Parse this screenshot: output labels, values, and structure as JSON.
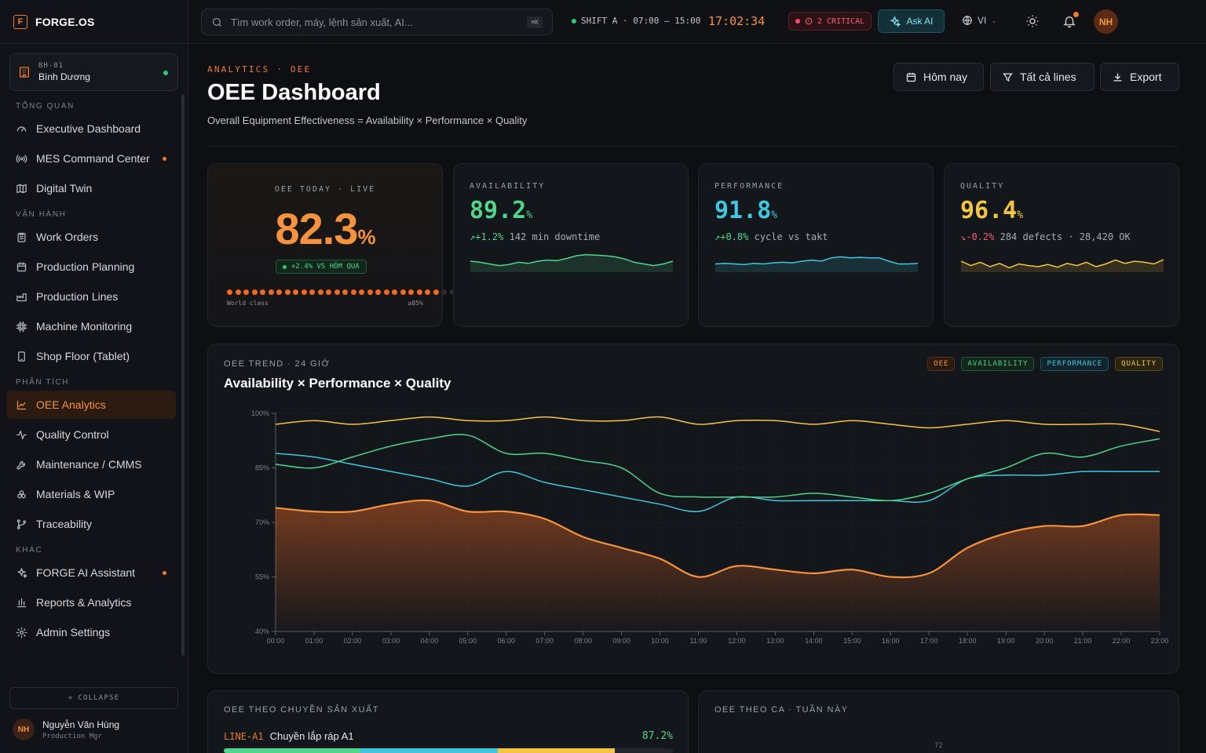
{
  "brand": {
    "logo_letter": "F",
    "name": "FORGE.OS"
  },
  "site": {
    "code": "BH-01",
    "name": "Bình Dương"
  },
  "nav": {
    "sections": [
      {
        "title": "TỔNG QUAN",
        "items": [
          {
            "label": "Executive Dashboard",
            "icon": "gauge-icon",
            "dot": false,
            "active": false
          },
          {
            "label": "MES Command Center",
            "icon": "broadcast-icon",
            "dot": true,
            "active": false
          },
          {
            "label": "Digital Twin",
            "icon": "map-icon",
            "dot": false,
            "active": false
          }
        ]
      },
      {
        "title": "VẬN HÀNH",
        "items": [
          {
            "label": "Work Orders",
            "icon": "clipboard-icon",
            "dot": false,
            "active": false
          },
          {
            "label": "Production Planning",
            "icon": "calendar-icon",
            "dot": false,
            "active": false
          },
          {
            "label": "Production Lines",
            "icon": "factory-icon",
            "dot": false,
            "active": false
          },
          {
            "label": "Machine Monitoring",
            "icon": "cpu-icon",
            "dot": false,
            "active": false
          },
          {
            "label": "Shop Floor (Tablet)",
            "icon": "tablet-icon",
            "dot": false,
            "active": false
          }
        ]
      },
      {
        "title": "PHÂN TÍCH",
        "items": [
          {
            "label": "OEE Analytics",
            "icon": "line-chart-icon",
            "dot": false,
            "active": true
          },
          {
            "label": "Quality Control",
            "icon": "activity-icon",
            "dot": false,
            "active": false
          },
          {
            "label": "Maintenance / CMMS",
            "icon": "wrench-icon",
            "dot": false,
            "active": false
          },
          {
            "label": "Materials & WIP",
            "icon": "boxes-icon",
            "dot": false,
            "active": false
          },
          {
            "label": "Traceability",
            "icon": "git-branch-icon",
            "dot": false,
            "active": false
          }
        ]
      },
      {
        "title": "KHÁC",
        "items": [
          {
            "label": "FORGE AI Assistant",
            "icon": "sparkles-icon",
            "dot": true,
            "active": false
          },
          {
            "label": "Reports & Analytics",
            "icon": "bar-chart-icon",
            "dot": false,
            "active": false
          },
          {
            "label": "Admin Settings",
            "icon": "settings-icon",
            "dot": false,
            "active": false
          }
        ]
      }
    ],
    "collapse_label": "COLLAPSE"
  },
  "user": {
    "initials": "NH",
    "name": "Nguyễn Văn Hùng",
    "role": "Production Mgr"
  },
  "topbar": {
    "search_placeholder": "Tìm work order, máy, lệnh sản xuất, AI...",
    "search_shortcut": "⌘K",
    "shift": "SHIFT A · 07:00 – 15:00",
    "clock": "17:02:34",
    "critical": "2 CRITICAL",
    "ask_ai": "Ask AI",
    "language": "VI",
    "avatar": "NH"
  },
  "header": {
    "eyebrow": "ANALYTICS · OEE",
    "title": "OEE Dashboard",
    "subtitle": "Overall Equipment Effectiveness = Availability × Performance × Quality",
    "buttons": {
      "today": "Hôm nay",
      "lines": "Tất cả lines",
      "export": "Export"
    }
  },
  "oee_today": {
    "label": "OEE TODAY · LIVE",
    "value": "82.3",
    "unit": "%",
    "delta": "+2.4% VS HÔM QUA",
    "progress_fraction": 0.823,
    "world_class_label": "World class",
    "world_class_target": "≥85%"
  },
  "kpis": [
    {
      "key": "availability",
      "label": "AVAILABILITY",
      "value": "89.2",
      "unit": "%",
      "trend": "↗+1.2%",
      "trend_color": "#4fd68a",
      "detail": "142 min downtime",
      "color": "#4fd68a",
      "spark": [
        60,
        58,
        55,
        52,
        54,
        58,
        56,
        60,
        62,
        61,
        65,
        70,
        72,
        71,
        70,
        68,
        64,
        58,
        55,
        52,
        55,
        60
      ]
    },
    {
      "key": "performance",
      "label": "PERFORMANCE",
      "value": "91.8",
      "unit": "%",
      "trend": "↗+0.8%",
      "trend_color": "#4fd68a",
      "detail": "cycle vs takt",
      "color": "#3fc7e0",
      "spark": [
        55,
        56,
        55,
        54,
        56,
        55,
        57,
        58,
        57,
        60,
        62,
        60,
        66,
        68,
        66,
        67,
        66,
        66,
        60,
        55,
        55,
        56
      ]
    },
    {
      "key": "quality",
      "label": "QUALITY",
      "value": "96.4",
      "unit": "%",
      "trend": "↘-0.2%",
      "trend_color": "#ff5a6e",
      "detail": "284 defects · 28,420 OK",
      "color": "#f5c542",
      "spark": [
        60,
        52,
        58,
        50,
        56,
        48,
        55,
        52,
        50,
        54,
        49,
        56,
        52,
        58,
        50,
        55,
        62,
        56,
        60,
        58,
        55,
        63
      ]
    }
  ],
  "trend": {
    "label": "OEE TREND · 24 GIỜ",
    "title": "Availability × Performance × Quality",
    "legend": [
      {
        "name": "OEE",
        "color": "#f5923e",
        "bg": "#2a1a10",
        "border": "#5a3016"
      },
      {
        "name": "AVAILABILITY",
        "color": "#4fd68a",
        "bg": "#12261c",
        "border": "#1f5a3a"
      },
      {
        "name": "PERFORMANCE",
        "color": "#3fc7e0",
        "bg": "#10262c",
        "border": "#1f5560"
      },
      {
        "name": "QUALITY",
        "color": "#f5c542",
        "bg": "#2a2412",
        "border": "#5a4a1c"
      }
    ]
  },
  "chart_data": {
    "type": "line",
    "title": "Availability × Performance × Quality",
    "x": [
      "00:00",
      "01:00",
      "02:00",
      "03:00",
      "04:00",
      "05:00",
      "06:00",
      "07:00",
      "08:00",
      "09:00",
      "10:00",
      "11:00",
      "12:00",
      "13:00",
      "14:00",
      "15:00",
      "16:00",
      "17:00",
      "18:00",
      "19:00",
      "20:00",
      "21:00",
      "22:00",
      "23:00"
    ],
    "ylim": [
      40,
      100
    ],
    "yticks": [
      100,
      85,
      70,
      55,
      40
    ],
    "series": [
      {
        "name": "OEE",
        "color": "#f5923e",
        "area": true,
        "values": [
          74,
          73,
          73,
          75,
          76,
          73,
          73,
          71,
          66,
          63,
          60,
          55,
          58,
          57,
          56,
          57,
          55,
          56,
          63,
          67,
          69,
          69,
          72,
          72
        ]
      },
      {
        "name": "AVAILABILITY",
        "color": "#4fd68a",
        "values": [
          86,
          85,
          88,
          91,
          93,
          94,
          89,
          89,
          87,
          85,
          78,
          77,
          77,
          77,
          78,
          77,
          76,
          78,
          82,
          85,
          89,
          88,
          91,
          93
        ]
      },
      {
        "name": "PERFORMANCE",
        "color": "#3fc7e0",
        "values": [
          89,
          88,
          86,
          84,
          82,
          80,
          84,
          81,
          79,
          77,
          75,
          73,
          77,
          76,
          76,
          76,
          76,
          76,
          82,
          83,
          83,
          84,
          84,
          84
        ]
      },
      {
        "name": "QUALITY",
        "color": "#f5c542",
        "values": [
          97,
          98,
          97,
          98,
          99,
          98,
          98,
          99,
          98,
          98,
          99,
          97,
          98,
          98,
          97,
          98,
          97,
          96,
          97,
          98,
          97,
          97,
          97,
          95
        ]
      }
    ]
  },
  "by_line": {
    "label": "OEE THEO CHUYỀN SẢN XUẤT",
    "rows": [
      {
        "code": "LINE-A1",
        "name": "Chuyền lắp ráp A1",
        "value": "87.2%",
        "segments": [
          {
            "fraction": 0.305,
            "color": "#4fd68a"
          },
          {
            "fraction": 0.305,
            "color": "#3fc7e0"
          },
          {
            "fraction": 0.26,
            "color": "#f5c542"
          }
        ]
      }
    ]
  },
  "by_shift": {
    "label": "OEE THEO CA · TUẦN NÀY",
    "axis_top": "72"
  }
}
